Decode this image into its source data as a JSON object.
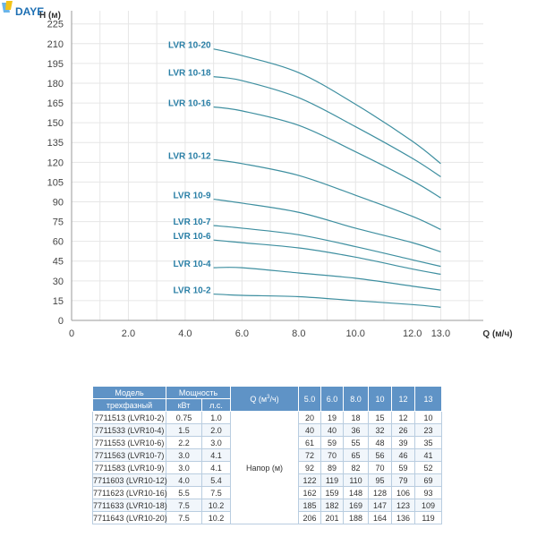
{
  "brand": {
    "logo_text": "DAYE",
    "colors": {
      "yellow": "#f2c318",
      "blue": "#1d6fb3",
      "ribbon": "#6ab4e8"
    }
  },
  "chart_data": {
    "type": "line",
    "xlabel": "Q (м/ч)",
    "ylabel": "H (м)",
    "xlim": [
      0,
      14.5
    ],
    "ylim": [
      0,
      235
    ],
    "x_ticks": [
      0,
      2,
      4,
      6,
      8,
      10,
      12,
      13
    ],
    "x_tick_labels": [
      "0",
      "2.0",
      "4.0",
      "6.0",
      "8.0",
      "10.0",
      "12.0",
      "13.0"
    ],
    "y_ticks": [
      0,
      15,
      30,
      45,
      60,
      75,
      90,
      105,
      120,
      135,
      150,
      165,
      180,
      195,
      210,
      225
    ],
    "grid": true,
    "line_color": "#3e8fa0",
    "label_color": "#2a7fa6",
    "x": [
      5.0,
      6.0,
      8.0,
      10.0,
      12.0,
      13.0
    ],
    "series": [
      {
        "name": "LVR 10-2",
        "values": [
          20,
          19,
          18,
          15,
          12,
          10
        ]
      },
      {
        "name": "LVR 10-4",
        "values": [
          40,
          40,
          36,
          32,
          26,
          23
        ]
      },
      {
        "name": "LVR 10-6",
        "values": [
          61,
          59,
          55,
          48,
          39,
          35
        ]
      },
      {
        "name": "LVR 10-7",
        "values": [
          72,
          70,
          65,
          56,
          46,
          41
        ]
      },
      {
        "name": "LVR 10-9",
        "values": [
          92,
          89,
          82,
          70,
          59,
          52
        ]
      },
      {
        "name": "LVR 10-12",
        "values": [
          122,
          119,
          110,
          95,
          79,
          69
        ]
      },
      {
        "name": "LVR 10-16",
        "values": [
          162,
          159,
          148,
          128,
          106,
          93
        ]
      },
      {
        "name": "LVR 10-18",
        "values": [
          185,
          182,
          169,
          147,
          123,
          109
        ]
      },
      {
        "name": "LVR 10-20",
        "values": [
          206,
          201,
          188,
          164,
          136,
          119
        ]
      }
    ]
  },
  "table": {
    "header": {
      "model": "Модель",
      "model_sub": "трехфазный",
      "power": "Мощность",
      "kw": "кВт",
      "hp": "л.с.",
      "flow": "Q (м³/ч)",
      "flows": [
        "5.0",
        "6.0",
        "8.0",
        "10",
        "12",
        "13"
      ]
    },
    "head_label": "Напор (м)",
    "rows": [
      {
        "model": "7711513 (LVR10-2)",
        "kw": "0.75",
        "hp": "1.0",
        "h": [
          "20",
          "19",
          "18",
          "15",
          "12",
          "10"
        ]
      },
      {
        "model": "7711533 (LVR10-4)",
        "kw": "1.5",
        "hp": "2.0",
        "h": [
          "40",
          "40",
          "36",
          "32",
          "26",
          "23"
        ]
      },
      {
        "model": "7711553 (LVR10-6)",
        "kw": "2.2",
        "hp": "3.0",
        "h": [
          "61",
          "59",
          "55",
          "48",
          "39",
          "35"
        ]
      },
      {
        "model": "7711563 (LVR10-7)",
        "kw": "3.0",
        "hp": "4.1",
        "h": [
          "72",
          "70",
          "65",
          "56",
          "46",
          "41"
        ]
      },
      {
        "model": "7711583 (LVR10-9)",
        "kw": "3.0",
        "hp": "4.1",
        "h": [
          "92",
          "89",
          "82",
          "70",
          "59",
          "52"
        ]
      },
      {
        "model": "7711603 (LVR10-12)",
        "kw": "4.0",
        "hp": "5.4",
        "h": [
          "122",
          "119",
          "110",
          "95",
          "79",
          "69"
        ]
      },
      {
        "model": "7711623 (LVR10-16)",
        "kw": "5.5",
        "hp": "7.5",
        "h": [
          "162",
          "159",
          "148",
          "128",
          "106",
          "93"
        ]
      },
      {
        "model": "7711633 (LVR10-18)",
        "kw": "7.5",
        "hp": "10.2",
        "h": [
          "185",
          "182",
          "169",
          "147",
          "123",
          "109"
        ]
      },
      {
        "model": "7711643 (LVR10-20)",
        "kw": "7.5",
        "hp": "10.2",
        "h": [
          "206",
          "201",
          "188",
          "164",
          "136",
          "119"
        ]
      }
    ]
  }
}
